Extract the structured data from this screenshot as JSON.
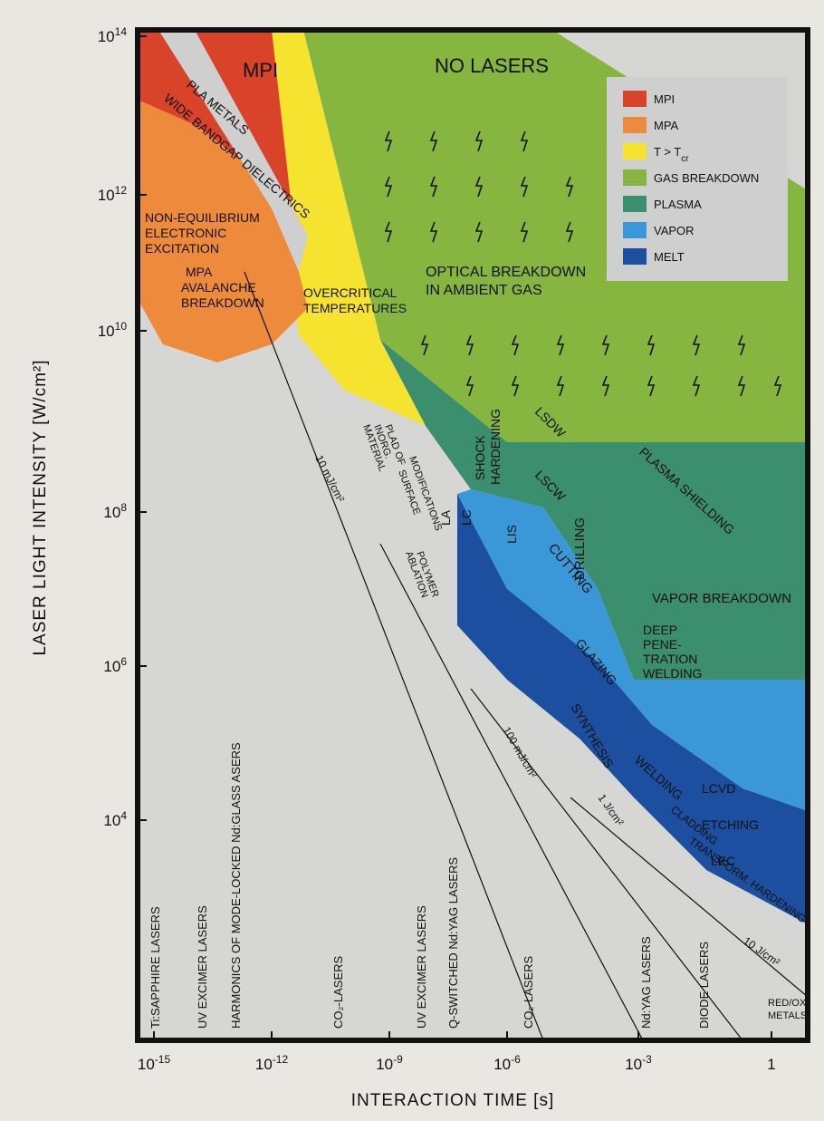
{
  "axes": {
    "x_title": "INTERACTION TIME [s]",
    "y_title": "LASER LIGHT INTENSITY  [W/cm²]",
    "x_ticks": [
      {
        "base": "10",
        "exp": "-15"
      },
      {
        "base": "10",
        "exp": "-12"
      },
      {
        "base": "10",
        "exp": "-9"
      },
      {
        "base": "10",
        "exp": "-6"
      },
      {
        "base": "10",
        "exp": "-3"
      },
      {
        "text": "1"
      }
    ],
    "y_ticks": [
      {
        "base": "10",
        "exp": "14"
      },
      {
        "base": "10",
        "exp": "12"
      },
      {
        "base": "10",
        "exp": "10"
      },
      {
        "base": "10",
        "exp": "8"
      },
      {
        "base": "10",
        "exp": "6"
      },
      {
        "base": "10",
        "exp": "4"
      }
    ]
  },
  "legend": [
    {
      "label": "MPI",
      "color": "#d9432a"
    },
    {
      "label": "MPA",
      "color": "#ee8a3c"
    },
    {
      "label": "T > T",
      "sub": "cr",
      "color": "#f6e330"
    },
    {
      "label": "GAS BREAKDOWN",
      "color": "#86b640"
    },
    {
      "label": "PLASMA",
      "color": "#3b8e6e"
    },
    {
      "label": "VAPOR",
      "color": "#3a98d8"
    },
    {
      "label": "MELT",
      "color": "#1d4fa0"
    }
  ],
  "labels": {
    "no_lasers": "NO LASERS",
    "mpi": "MPI",
    "pla_metals": "PLA METALS",
    "wide_bandgap": "WIDE BANDGAP DIELECTRICS",
    "non_eq_1": "NON-EQUILIBRIUM",
    "non_eq_2": "ELECTRONIC",
    "non_eq_3": "EXCITATION",
    "mpa_1": "MPA",
    "mpa_2": "AVALANCHE",
    "mpa_3": "BREAKDOWN",
    "overcrit_1": "OVERCRITICAL",
    "overcrit_2": "TEMPERATURES",
    "optical_1": "OPTICAL BREAKDOWN",
    "optical_2": "IN AMBIENT GAS",
    "lsdw": "LSDW",
    "lscw": "LSCW",
    "shock_1": "SHOCK",
    "shock_2": "HARDENING",
    "plasma_shielding": "PLASMA SHIELDING",
    "drilling": "DRILLING",
    "cutting": "CUTTING",
    "vapor_breakdown": "VAPOR BREAKDOWN",
    "deep_1": "DEEP",
    "deep_2": "PENE-",
    "deep_3": "TRATION",
    "deep_4": "WELDING",
    "lis": "LIS",
    "la": "LA",
    "lc": "LC",
    "glazing": "GLAZING",
    "synthesis": "SYNTHESIS",
    "welding": "WELDING",
    "cladding": "CLADDING",
    "transform": "TRANSFORM. HARDENING",
    "lcvd": "LCVD",
    "etching": "ETCHING",
    "lec": "LEC",
    "redox_1": "RED/OX",
    "redox_2": "METALS",
    "plad_1": "PLAD OF",
    "plad_2": "INORG.",
    "plad_3": "MATERIAL",
    "surface_1": "SURFACE",
    "surface_2": "MODIFICATIONS",
    "polymer_1": "POLYMER",
    "polymer_2": "ABLATION",
    "fluence_10mj": "10 mJ/cm²",
    "fluence_100mj": "100 mJ/cm²",
    "fluence_1j": "1 J/cm²",
    "fluence_10j": "10 J/cm²"
  },
  "lasers": [
    "Ti:SAPPHIRE LASERS",
    "UV EXCIMER LASERS",
    "HARMONICS OF MODE-LOCKED Nd:GLASS ASERS",
    "CO₂-LASERS",
    "UV EXCIMER LASERS",
    "Q-SWITCHED Nd:YAG LASERS",
    "CO₂-LASERS",
    "Nd:YAG LASERS",
    "DIODE LASERS"
  ]
}
